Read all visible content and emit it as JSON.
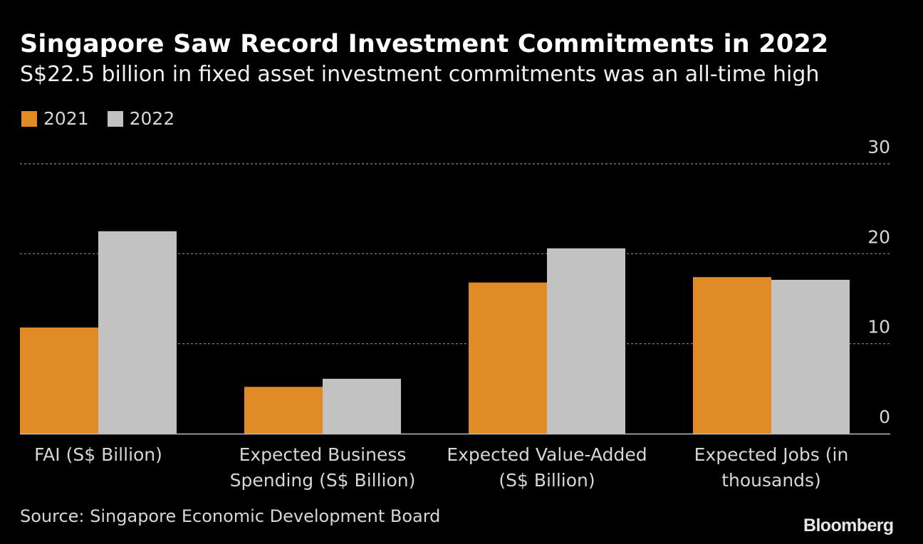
{
  "chart_data": {
    "type": "bar",
    "title": "Singapore Saw Record Investment Commitments in 2022",
    "subtitle": "S$22.5 billion in fixed asset investment commitments was an all-time high",
    "categories": [
      [
        "FAI (S$ Billion)"
      ],
      [
        "Expected Business",
        "Spending (S$ Billion)"
      ],
      [
        "Expected Value-Added",
        "(S$ Billion)"
      ],
      [
        "Expected Jobs (in",
        "thousands)"
      ]
    ],
    "series": [
      {
        "name": "2021",
        "color": "#e08b26",
        "values": [
          11.8,
          5.2,
          16.8,
          17.4
        ]
      },
      {
        "name": "2022",
        "color": "#c2c2c2",
        "values": [
          22.5,
          6.1,
          20.6,
          17.1
        ]
      }
    ],
    "ylim": [
      0,
      30
    ],
    "yticks": [
      "0",
      "10",
      "20",
      "30"
    ],
    "grid": true,
    "legend_position": "top-left",
    "source": "Source: Singapore Economic Development Board",
    "branding": "Bloomberg"
  }
}
